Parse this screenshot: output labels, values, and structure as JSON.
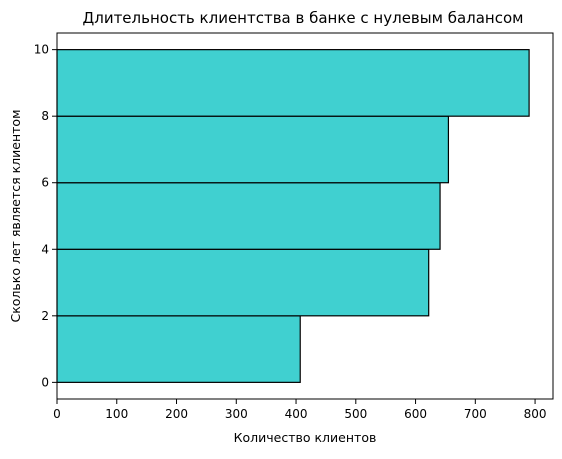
{
  "chart_data": {
    "type": "bar",
    "orientation": "horizontal",
    "title": "Длительность клиентства в банке с нулевым балансом",
    "xlabel": "Количество клиентов",
    "ylabel": "Сколько лет является клиентом",
    "xlim": [
      0,
      830
    ],
    "ylim": [
      -0.5,
      10.5
    ],
    "xticks": [
      0,
      100,
      200,
      300,
      400,
      500,
      600,
      700,
      800
    ],
    "yticks": [
      0,
      2,
      4,
      6,
      8,
      10
    ],
    "bins": [
      {
        "y_start": 0,
        "y_end": 2,
        "value": 407
      },
      {
        "y_start": 2,
        "y_end": 4,
        "value": 622
      },
      {
        "y_start": 4,
        "y_end": 6,
        "value": 641
      },
      {
        "y_start": 6,
        "y_end": 8,
        "value": 655
      },
      {
        "y_start": 8,
        "y_end": 10,
        "value": 790
      }
    ],
    "bar_color": "#40D0D0",
    "edge_color": "#000000",
    "grid": false,
    "legend": "none"
  }
}
